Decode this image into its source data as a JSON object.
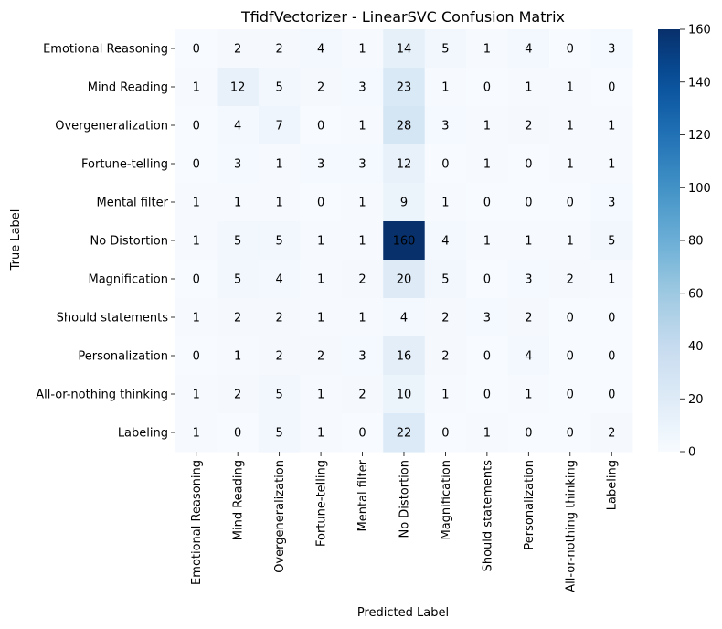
{
  "chart_data": {
    "type": "heatmap",
    "title": "TfidfVectorizer - LinearSVC Confusion Matrix",
    "xlabel": "Predicted Label",
    "ylabel": "True Label",
    "row_labels": [
      "Emotional Reasoning",
      "Mind Reading",
      "Overgeneralization",
      "Fortune-telling",
      "Mental filter",
      "No Distortion",
      "Magnification",
      "Should statements",
      "Personalization",
      "All-or-nothing thinking",
      "Labeling"
    ],
    "col_labels": [
      "Emotional Reasoning",
      "Mind Reading",
      "Overgeneralization",
      "Fortune-telling",
      "Mental filter",
      "No Distortion",
      "Magnification",
      "Should statements",
      "Personalization",
      "All-or-nothing thinking",
      "Labeling"
    ],
    "values": [
      [
        0,
        2,
        2,
        4,
        1,
        14,
        5,
        1,
        4,
        0,
        3
      ],
      [
        1,
        12,
        5,
        2,
        3,
        23,
        1,
        0,
        1,
        1,
        0
      ],
      [
        0,
        4,
        7,
        0,
        1,
        28,
        3,
        1,
        2,
        1,
        1
      ],
      [
        0,
        3,
        1,
        3,
        3,
        12,
        0,
        1,
        0,
        1,
        1
      ],
      [
        1,
        1,
        1,
        0,
        1,
        9,
        1,
        0,
        0,
        0,
        3
      ],
      [
        1,
        5,
        5,
        1,
        1,
        160,
        4,
        1,
        1,
        1,
        5
      ],
      [
        0,
        5,
        4,
        1,
        2,
        20,
        5,
        0,
        3,
        2,
        1
      ],
      [
        1,
        2,
        2,
        1,
        1,
        4,
        2,
        3,
        2,
        0,
        0
      ],
      [
        0,
        1,
        2,
        2,
        3,
        16,
        2,
        0,
        4,
        0,
        0
      ],
      [
        1,
        2,
        5,
        1,
        2,
        10,
        1,
        0,
        1,
        0,
        0
      ],
      [
        1,
        0,
        5,
        1,
        0,
        22,
        0,
        1,
        0,
        0,
        2
      ]
    ],
    "colorbar": {
      "min": 0,
      "max": 160,
      "ticks": [
        0,
        20,
        40,
        60,
        80,
        100,
        120,
        140,
        160
      ],
      "colormap": "Blues",
      "low_color": "#f7fbff",
      "high_color": "#08306b"
    },
    "grid": false
  }
}
